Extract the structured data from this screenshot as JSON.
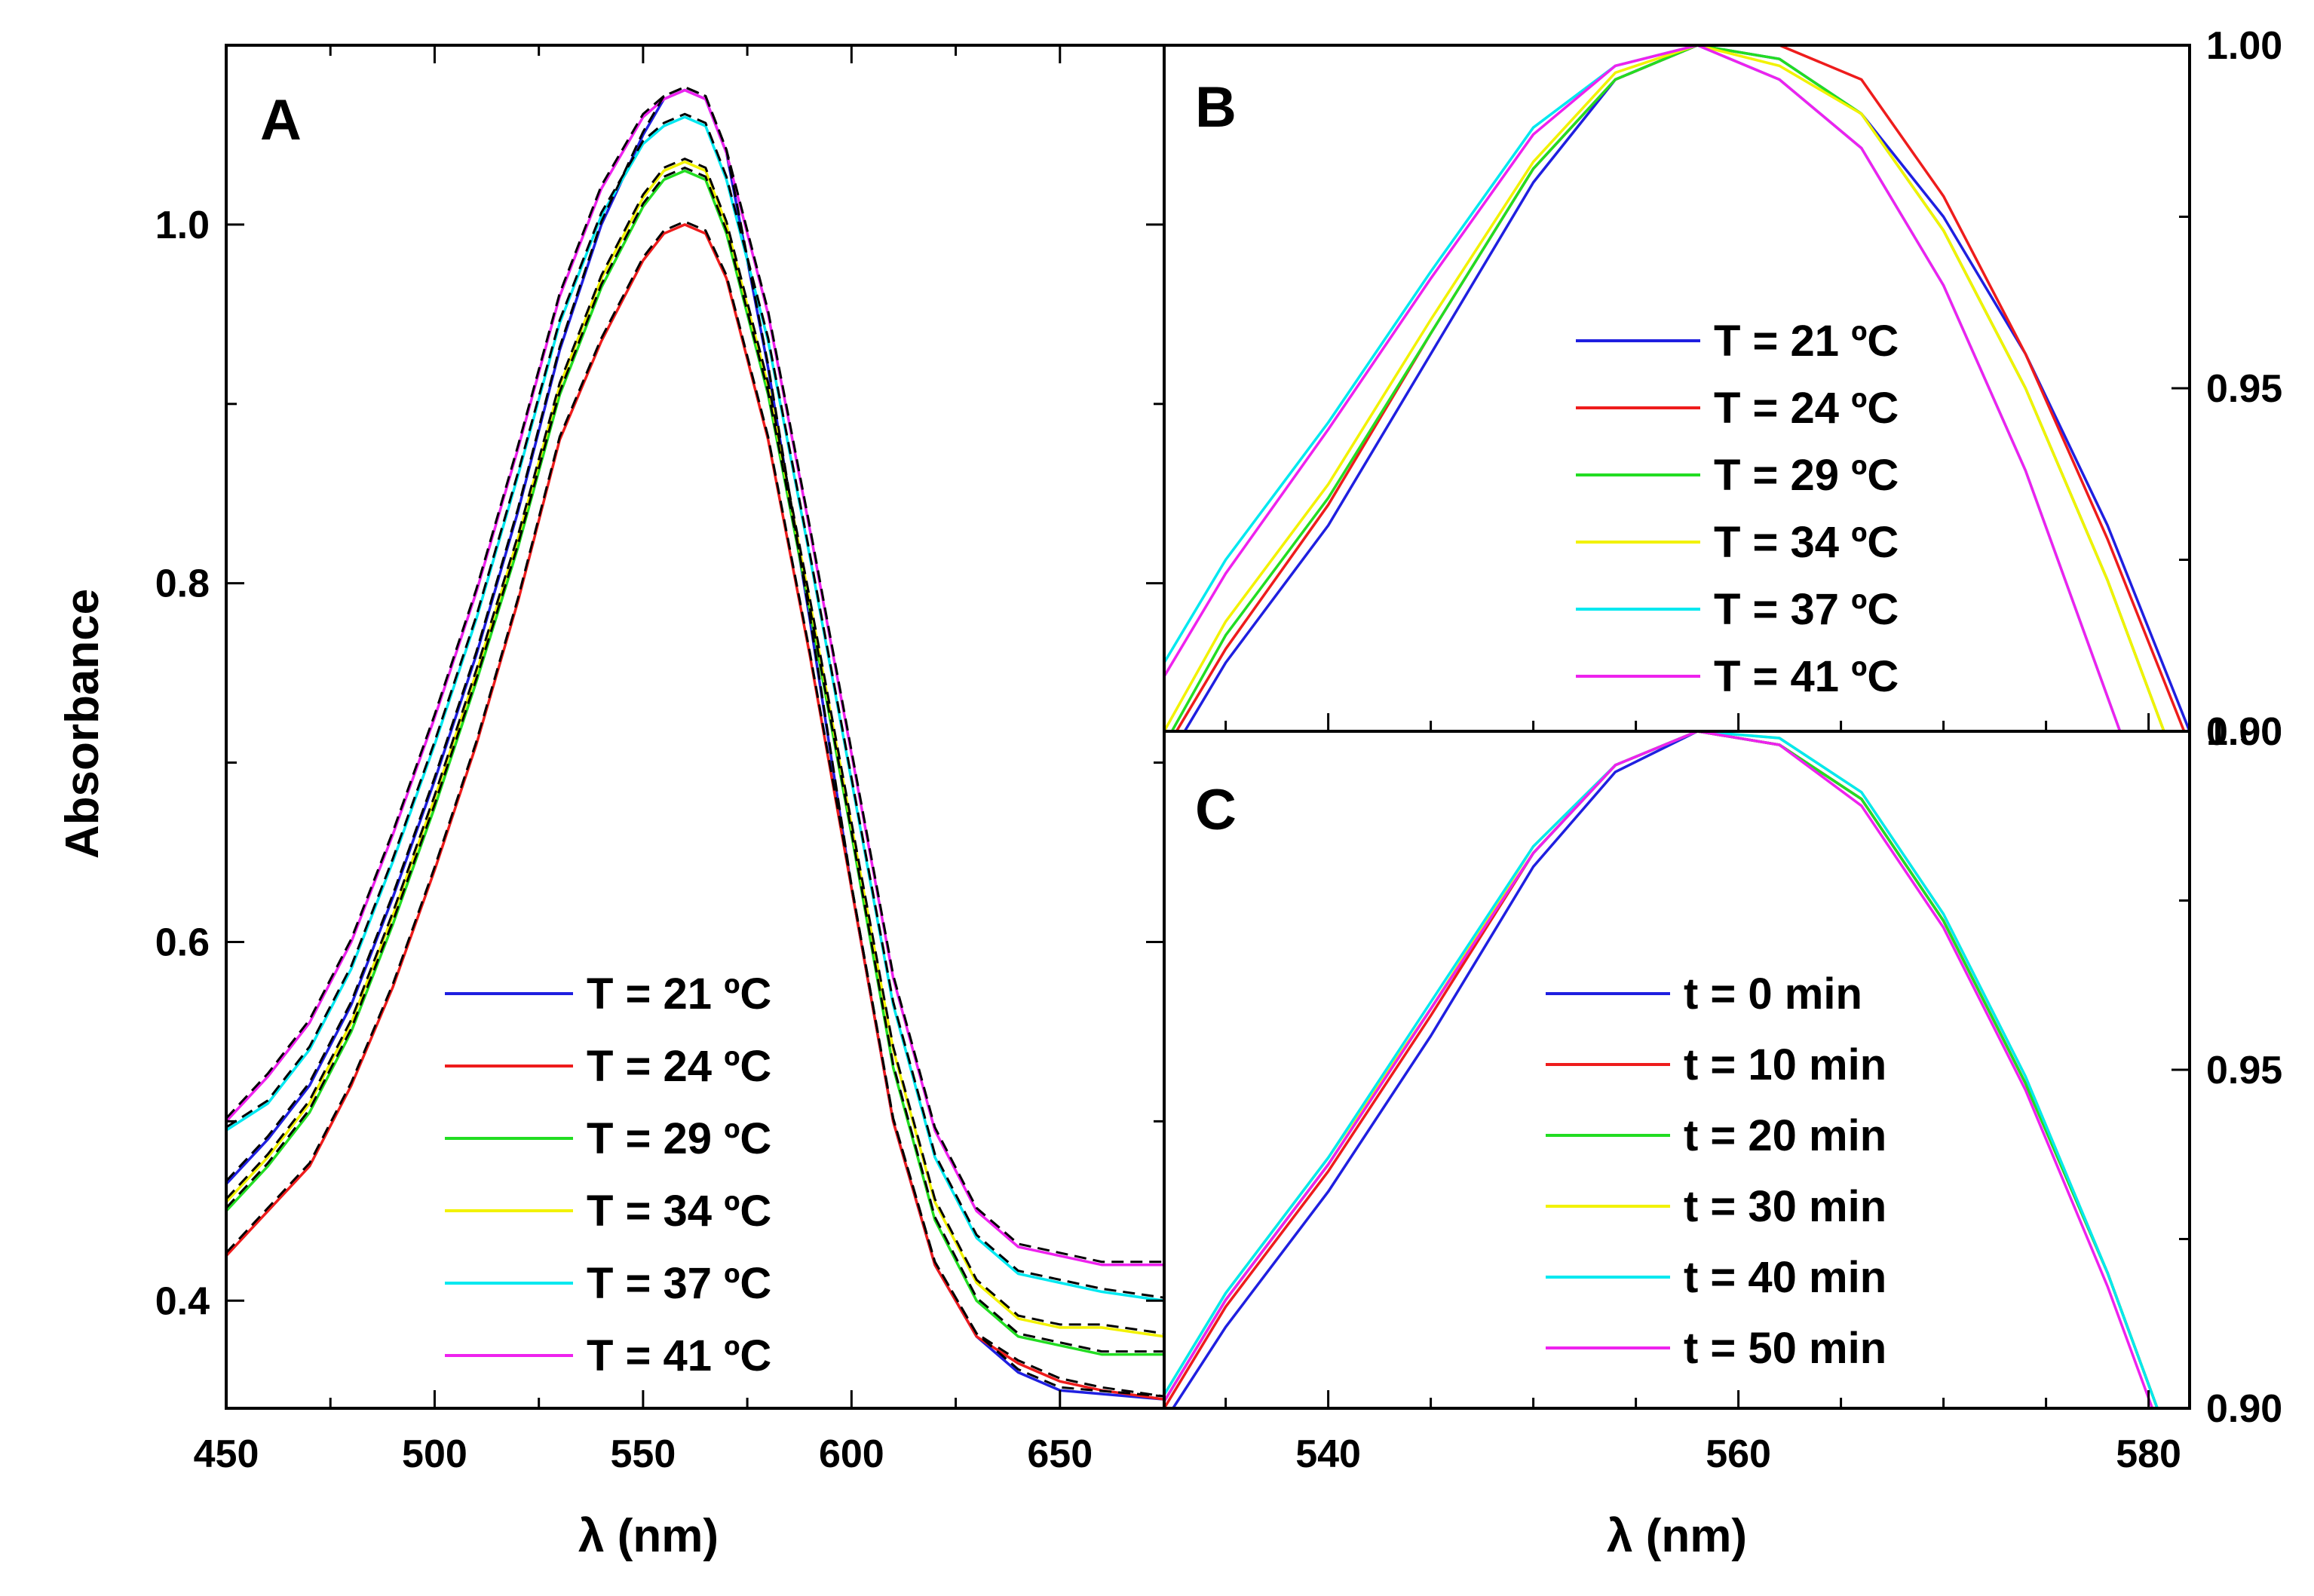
{
  "chart_data": [
    {
      "panel": "A",
      "type": "line",
      "xlabel": "λ (nm)",
      "ylabel": "Absorbance",
      "xlim": [
        450,
        675
      ],
      "ylim": [
        0.34,
        1.1
      ],
      "xticks": [
        450,
        500,
        550,
        600,
        650
      ],
      "yticks": [
        0.4,
        0.6,
        0.8,
        1.0
      ],
      "ytick_labels": [
        "0.4",
        "0.6",
        "0.8",
        "1.0"
      ],
      "legend_position": "bottom-center",
      "fit_lines": "dashed black fits overlaid on each curve",
      "x": [
        450,
        460,
        470,
        480,
        490,
        500,
        510,
        520,
        530,
        540,
        550,
        555,
        560,
        565,
        570,
        580,
        590,
        600,
        610,
        620,
        630,
        640,
        650,
        660,
        675
      ],
      "series": [
        {
          "name": "T = 21 ºC",
          "color": "#1f1fe0",
          "values": [
            0.465,
            0.49,
            0.52,
            0.565,
            0.625,
            0.69,
            0.76,
            0.84,
            0.93,
            1.0,
            1.05,
            1.07,
            1.075,
            1.07,
            1.04,
            0.92,
            0.78,
            0.63,
            0.5,
            0.42,
            0.38,
            0.36,
            0.35,
            0.348,
            0.345
          ]
        },
        {
          "name": "T = 24 ºC",
          "color": "#ee1c1c",
          "values": [
            0.425,
            0.45,
            0.475,
            0.52,
            0.575,
            0.64,
            0.71,
            0.79,
            0.88,
            0.935,
            0.98,
            0.995,
            1.0,
            0.995,
            0.97,
            0.88,
            0.76,
            0.63,
            0.5,
            0.42,
            0.38,
            0.365,
            0.355,
            0.35,
            0.345
          ]
        },
        {
          "name": "T = 29 ºC",
          "color": "#22dd22",
          "values": [
            0.45,
            0.475,
            0.505,
            0.55,
            0.61,
            0.675,
            0.745,
            0.82,
            0.905,
            0.965,
            1.01,
            1.025,
            1.03,
            1.025,
            0.995,
            0.905,
            0.785,
            0.66,
            0.53,
            0.445,
            0.4,
            0.38,
            0.375,
            0.37,
            0.37
          ]
        },
        {
          "name": "T = 34 ºC",
          "color": "#f2f200",
          "values": [
            0.455,
            0.48,
            0.51,
            0.555,
            0.615,
            0.68,
            0.75,
            0.825,
            0.91,
            0.97,
            1.015,
            1.03,
            1.035,
            1.03,
            1.0,
            0.91,
            0.79,
            0.665,
            0.54,
            0.455,
            0.41,
            0.39,
            0.385,
            0.385,
            0.38
          ]
        },
        {
          "name": "T = 37 ºC",
          "color": "#00e8f0",
          "values": [
            0.495,
            0.51,
            0.54,
            0.585,
            0.645,
            0.71,
            0.78,
            0.86,
            0.945,
            1.005,
            1.045,
            1.055,
            1.06,
            1.055,
            1.025,
            0.935,
            0.815,
            0.69,
            0.565,
            0.48,
            0.435,
            0.415,
            0.41,
            0.405,
            0.4
          ]
        },
        {
          "name": "T = 41 ºC",
          "color": "#ee22ee",
          "values": [
            0.5,
            0.525,
            0.555,
            0.6,
            0.66,
            0.725,
            0.795,
            0.875,
            0.96,
            1.02,
            1.06,
            1.07,
            1.075,
            1.07,
            1.04,
            0.95,
            0.83,
            0.705,
            0.58,
            0.495,
            0.45,
            0.43,
            0.425,
            0.42,
            0.42
          ]
        }
      ]
    },
    {
      "panel": "B",
      "type": "line",
      "xlabel": "λ (nm)",
      "ylabel": "",
      "xlim": [
        532,
        582
      ],
      "ylim": [
        0.9,
        1.0
      ],
      "xticks": [
        540,
        560,
        580
      ],
      "yticks": [
        0.9,
        0.95,
        1.0
      ],
      "ytick_labels": [
        "0.90",
        "0.95",
        "1.00"
      ],
      "y_axis_side": "right",
      "legend_position": "center",
      "x": [
        532,
        535,
        540,
        545,
        550,
        554,
        558,
        562,
        566,
        570,
        574,
        578,
        582
      ],
      "series": [
        {
          "name": "T = 21 ºC",
          "color": "#1f1fe0",
          "values": [
            0.895,
            0.91,
            0.93,
            0.955,
            0.98,
            0.995,
            1.0,
            0.998,
            0.99,
            0.975,
            0.955,
            0.93,
            0.9
          ]
        },
        {
          "name": "T = 24 ºC",
          "color": "#ee1c1c",
          "values": [
            0.897,
            0.912,
            0.933,
            0.958,
            0.982,
            0.995,
            1.0,
            1.0,
            0.995,
            0.978,
            0.955,
            0.928,
            0.898
          ]
        },
        {
          "name": "T = 29 ºC",
          "color": "#22dd22",
          "values": [
            0.898,
            0.914,
            0.934,
            0.958,
            0.982,
            0.995,
            1.0,
            0.998,
            0.99,
            0.973,
            0.95,
            0.922,
            0.89
          ]
        },
        {
          "name": "T = 34 ºC",
          "color": "#f2f200",
          "values": [
            0.9,
            0.916,
            0.936,
            0.96,
            0.983,
            0.996,
            1.0,
            0.997,
            0.99,
            0.973,
            0.95,
            0.922,
            0.89
          ]
        },
        {
          "name": "T = 37 ºC",
          "color": "#00e8f0",
          "values": [
            0.91,
            0.925,
            0.945,
            0.967,
            0.988,
            0.997,
            1.0,
            0.995,
            0.985,
            0.965,
            0.938,
            0.905,
            0.872
          ]
        },
        {
          "name": "T = 41 ºC",
          "color": "#ee22ee",
          "values": [
            0.908,
            0.923,
            0.944,
            0.966,
            0.987,
            0.997,
            1.0,
            0.995,
            0.985,
            0.965,
            0.938,
            0.905,
            0.872
          ]
        }
      ]
    },
    {
      "panel": "C",
      "type": "line",
      "xlabel": "λ (nm)",
      "ylabel": "",
      "xlim": [
        532,
        582
      ],
      "ylim": [
        0.9,
        1.0
      ],
      "xticks": [
        540,
        560,
        580
      ],
      "yticks": [
        0.9,
        0.95,
        1.0
      ],
      "ytick_labels": [
        "0.90",
        "0.95",
        "1.00"
      ],
      "y_axis_side": "right",
      "legend_position": "center-right",
      "x": [
        532,
        535,
        540,
        545,
        550,
        554,
        558,
        562,
        566,
        570,
        574,
        578,
        582
      ],
      "series": [
        {
          "name": "t = 0 min",
          "color": "#1f1fe0",
          "values": [
            0.898,
            0.912,
            0.932,
            0.955,
            0.98,
            0.994,
            1.0,
            0.998,
            0.99,
            0.972,
            0.948,
            0.92,
            0.887
          ]
        },
        {
          "name": "t = 10 min",
          "color": "#ee1c1c",
          "values": [
            0.9,
            0.915,
            0.935,
            0.958,
            0.982,
            0.995,
            1.0,
            0.998,
            0.99,
            0.972,
            0.948,
            0.92,
            0.887
          ]
        },
        {
          "name": "t = 20 min",
          "color": "#22dd22",
          "values": [
            0.901,
            0.916,
            0.936,
            0.959,
            0.982,
            0.995,
            1.0,
            0.998,
            0.99,
            0.972,
            0.948,
            0.92,
            0.887
          ]
        },
        {
          "name": "t = 30 min",
          "color": "#f2f200",
          "values": [
            0.902,
            0.917,
            0.937,
            0.959,
            0.983,
            0.995,
            1.0,
            0.999,
            0.991,
            0.973,
            0.949,
            0.92,
            0.887
          ]
        },
        {
          "name": "t = 40 min",
          "color": "#00e8f0",
          "values": [
            0.902,
            0.917,
            0.937,
            0.96,
            0.983,
            0.995,
            1.0,
            0.999,
            0.991,
            0.973,
            0.949,
            0.92,
            0.887
          ]
        },
        {
          "name": "t = 50 min",
          "color": "#ee22ee",
          "values": [
            0.901,
            0.916,
            0.936,
            0.959,
            0.982,
            0.995,
            1.0,
            0.998,
            0.989,
            0.971,
            0.947,
            0.918,
            0.885
          ]
        }
      ]
    }
  ],
  "panel_letters": {
    "a": "A",
    "b": "B",
    "c": "C"
  },
  "axis_titles": {
    "a_x": "λ (nm)",
    "a_y": "Absorbance",
    "bc_x": "λ (nm)"
  }
}
